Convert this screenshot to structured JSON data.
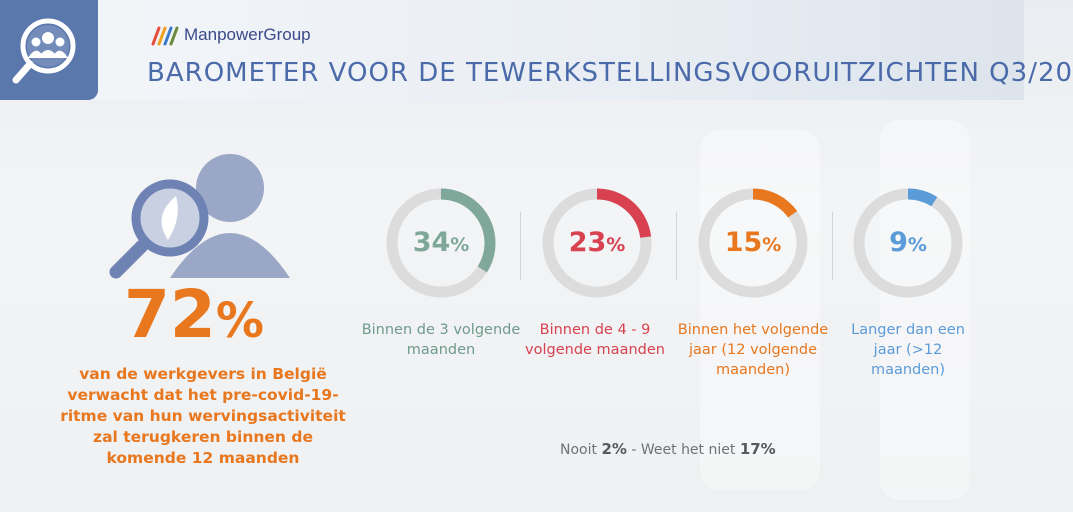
{
  "header": {
    "brand": "ManpowerGroup",
    "title": "BAROMETER VOOR DE TEWERKSTELLINGSVOORUITZICHTEN Q3/20"
  },
  "headline": {
    "value": "72",
    "unit": "%",
    "text": "van de werkgevers in België verwacht dat het pre-covid-19-ritme van hun wervingsactiviteit zal terugkeren binnen de komende 12 maanden"
  },
  "stats": [
    {
      "value": "34",
      "unit": "%",
      "percent": 34,
      "color": "#7fa89b",
      "label": "Binnen de 3 volgende maanden"
    },
    {
      "value": "23",
      "unit": "%",
      "percent": 23,
      "color": "#d8414f",
      "label": "Binnen de 4 - 9 volgende maanden"
    },
    {
      "value": "15",
      "unit": "%",
      "percent": 15,
      "color": "#e8771e",
      "label": "Binnen het volgende jaar (12 volgende maanden)"
    },
    {
      "value": "9",
      "unit": "%",
      "percent": 9,
      "color": "#5b9bd8",
      "label": "Langer dan een jaar (>12 maanden)"
    }
  ],
  "footnote": {
    "nooit_label": "Nooit",
    "nooit_value": "2%",
    "separator": "-",
    "weet_label": "Weet het niet",
    "weet_value": "17%"
  },
  "colors": {
    "accent_orange": "#e8771e",
    "title_blue": "#4b6aaa",
    "icon_box": "#5b78ad",
    "ring_track": "#dcdcdc"
  }
}
